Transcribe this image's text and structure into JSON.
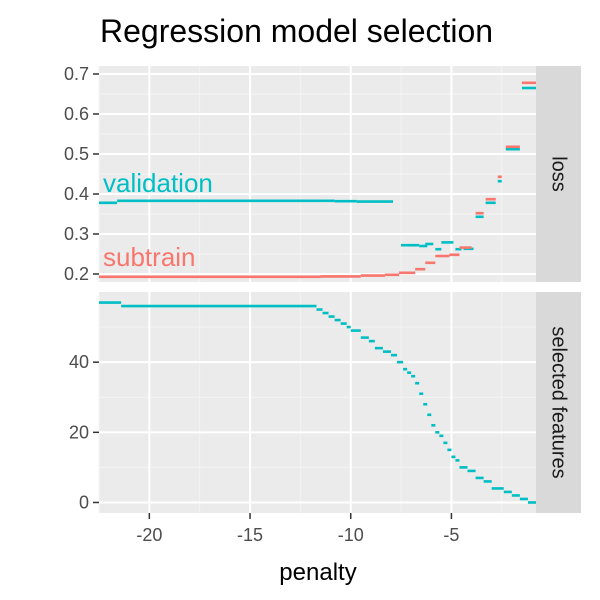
{
  "chart_data": {
    "type": "line",
    "title": "Regression model selection",
    "xlabel": "penalty",
    "xlim": [
      -22.5,
      -0.8
    ],
    "x_ticks": [
      -20,
      -15,
      -10,
      -5
    ],
    "colors": {
      "subtrain": "#F8766D",
      "validation": "#00BFC4"
    },
    "panels": [
      {
        "strip": "loss",
        "ylim": [
          0.18,
          0.72
        ],
        "y_ticks": [
          0.2,
          0.3,
          0.4,
          0.5,
          0.6,
          0.7
        ],
        "series": [
          {
            "name": "validation",
            "color": "#00BFC4",
            "segments": [
              [
                -22.5,
                -21.6,
                0.378
              ],
              [
                -21.6,
                -10.8,
                0.383
              ],
              [
                -10.8,
                -9.7,
                0.382
              ],
              [
                -9.7,
                -7.9,
                0.381
              ],
              [
                -7.5,
                -6.6,
                0.272
              ],
              [
                -6.6,
                -6.2,
                0.27
              ],
              [
                -6.3,
                -5.9,
                0.275
              ],
              [
                -5.8,
                -5.5,
                0.262
              ],
              [
                -5.5,
                -4.9,
                0.279
              ],
              [
                -4.8,
                -4.5,
                0.262
              ],
              [
                -4.4,
                -3.9,
                0.263
              ],
              [
                -3.8,
                -3.4,
                0.343
              ],
              [
                -3.3,
                -2.8,
                0.378
              ],
              [
                -2.7,
                -2.5,
                0.432
              ],
              [
                -2.3,
                -1.6,
                0.512
              ],
              [
                -1.5,
                -0.8,
                0.665
              ]
            ]
          },
          {
            "name": "subtrain",
            "color": "#F8766D",
            "segments": [
              [
                -22.5,
                -11.5,
                0.193
              ],
              [
                -11.5,
                -9.5,
                0.194
              ],
              [
                -9.5,
                -8.3,
                0.196
              ],
              [
                -8.3,
                -7.6,
                0.198
              ],
              [
                -7.6,
                -6.8,
                0.203
              ],
              [
                -6.8,
                -6.3,
                0.212
              ],
              [
                -6.3,
                -5.8,
                0.228
              ],
              [
                -5.8,
                -5.1,
                0.245
              ],
              [
                -5.1,
                -4.6,
                0.248
              ],
              [
                -4.6,
                -4.0,
                0.266
              ],
              [
                -3.8,
                -3.4,
                0.352
              ],
              [
                -3.3,
                -2.8,
                0.387
              ],
              [
                -2.7,
                -2.5,
                0.443
              ],
              [
                -2.3,
                -1.6,
                0.518
              ],
              [
                -1.5,
                -0.8,
                0.678
              ]
            ]
          }
        ],
        "labels": [
          {
            "text": "validation",
            "series": "validation",
            "x": -22.3,
            "y": 0.405
          },
          {
            "text": "subtrain",
            "series": "subtrain",
            "x": -22.3,
            "y": 0.22
          }
        ]
      },
      {
        "strip": "selected features",
        "ylim": [
          -3,
          60
        ],
        "y_ticks": [
          0,
          20,
          40
        ],
        "series": [
          {
            "name": "validation",
            "color": "#00BFC4",
            "segments": [
              [
                -22.5,
                -21.4,
                57
              ],
              [
                -21.4,
                -11.7,
                56
              ],
              [
                -11.7,
                -11.4,
                55
              ],
              [
                -11.4,
                -11.1,
                54
              ],
              [
                -11.1,
                -10.8,
                53
              ],
              [
                -10.8,
                -10.5,
                52
              ],
              [
                -10.5,
                -10.2,
                51
              ],
              [
                -10.2,
                -10.0,
                50
              ],
              [
                -10.0,
                -9.5,
                49
              ],
              [
                -9.5,
                -9.1,
                47
              ],
              [
                -9.1,
                -8.8,
                46
              ],
              [
                -8.8,
                -8.4,
                44
              ],
              [
                -8.4,
                -8.0,
                43
              ],
              [
                -8.0,
                -7.7,
                42
              ],
              [
                -7.7,
                -7.4,
                40
              ],
              [
                -7.4,
                -7.2,
                38
              ],
              [
                -7.2,
                -7.0,
                37
              ],
              [
                -7.0,
                -6.8,
                36
              ],
              [
                -6.8,
                -6.6,
                34
              ],
              [
                -6.6,
                -6.4,
                31
              ],
              [
                -6.4,
                -6.2,
                28
              ],
              [
                -6.2,
                -6.0,
                25
              ],
              [
                -6.0,
                -5.8,
                22
              ],
              [
                -5.8,
                -5.6,
                20
              ],
              [
                -5.6,
                -5.4,
                19
              ],
              [
                -5.4,
                -5.2,
                17
              ],
              [
                -5.2,
                -5.0,
                15
              ],
              [
                -5.0,
                -4.8,
                13
              ],
              [
                -4.8,
                -4.6,
                12
              ],
              [
                -4.6,
                -4.2,
                10
              ],
              [
                -4.2,
                -3.8,
                9
              ],
              [
                -3.8,
                -3.4,
                7
              ],
              [
                -3.4,
                -3.0,
                6
              ],
              [
                -3.0,
                -2.4,
                4
              ],
              [
                -2.4,
                -2.0,
                3
              ],
              [
                -2.0,
                -1.6,
                2
              ],
              [
                -1.6,
                -1.2,
                1
              ],
              [
                -1.2,
                -0.8,
                0
              ]
            ]
          }
        ]
      }
    ]
  }
}
